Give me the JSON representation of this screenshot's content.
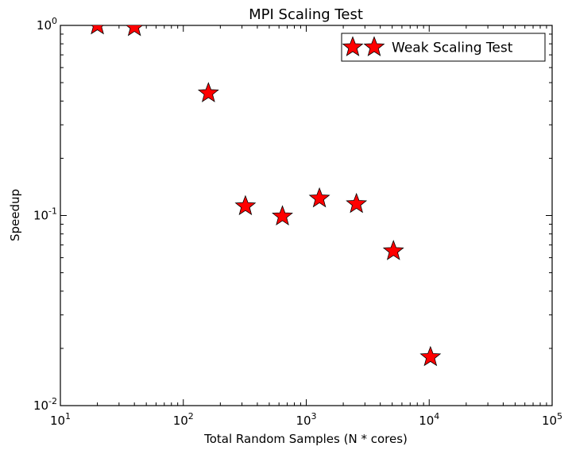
{
  "chart_data": {
    "type": "scatter",
    "title": "MPI Scaling Test",
    "xlabel": "Total Random Samples (N * cores)",
    "ylabel": "Speedup",
    "x_scale": "log",
    "y_scale": "log",
    "xlim": [
      10,
      100000
    ],
    "ylim": [
      0.01,
      1
    ],
    "x_ticks": [
      {
        "value": 10,
        "base": "10",
        "exp": "1"
      },
      {
        "value": 100,
        "base": "10",
        "exp": "2"
      },
      {
        "value": 1000,
        "base": "10",
        "exp": "3"
      },
      {
        "value": 10000,
        "base": "10",
        "exp": "4"
      },
      {
        "value": 100000,
        "base": "10",
        "exp": "5"
      }
    ],
    "y_ticks": [
      {
        "value": 1,
        "base": "10",
        "exp": "0"
      },
      {
        "value": 0.1,
        "base": "10",
        "exp": "-1"
      },
      {
        "value": 0.01,
        "base": "10",
        "exp": "-2"
      }
    ],
    "grid": false,
    "legend_position": "top-right",
    "series": [
      {
        "name": "Weak Scaling Test",
        "marker": "star",
        "color": "#ff0000",
        "edge_color": "#000000",
        "x": [
          20,
          40,
          160,
          320,
          640,
          1280,
          2560,
          5120,
          10240
        ],
        "y": [
          1.0,
          0.98,
          0.44,
          0.112,
          0.099,
          0.123,
          0.115,
          0.065,
          0.018
        ]
      }
    ]
  }
}
